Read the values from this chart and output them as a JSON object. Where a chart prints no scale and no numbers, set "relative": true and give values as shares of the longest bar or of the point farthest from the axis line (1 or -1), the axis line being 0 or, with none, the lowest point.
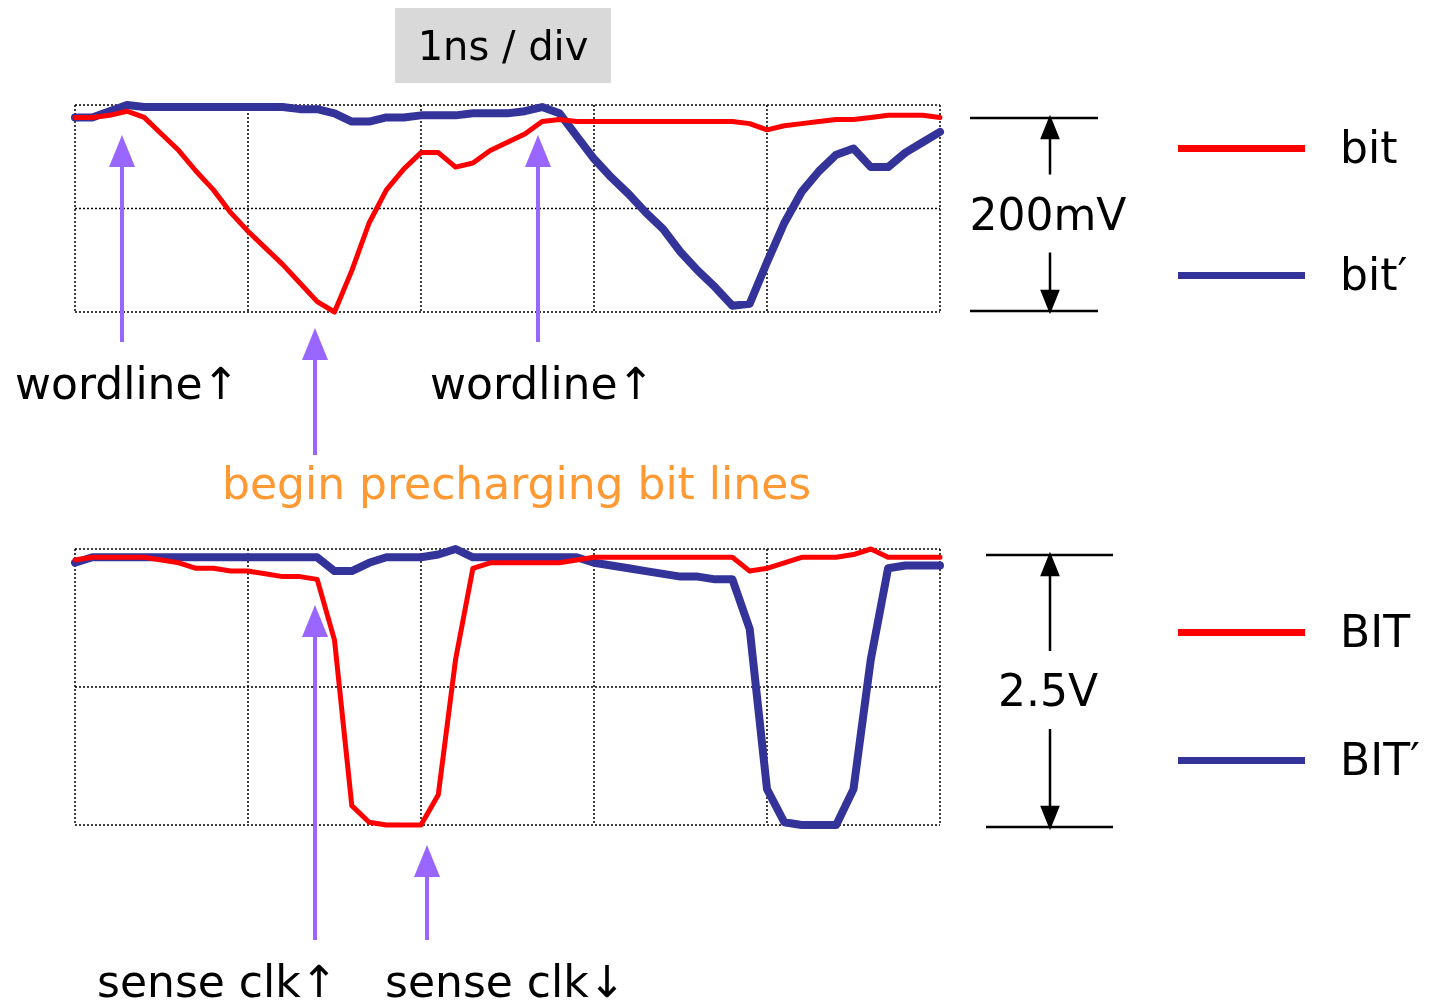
{
  "chart_data": [
    {
      "type": "line",
      "title": "1ns / div",
      "relative": true,
      "grid": true,
      "legend": "right",
      "marker": "none",
      "annotations": [
        "200mV",
        "wordline↑",
        "wordline↑",
        "begin precharging bit lines"
      ],
      "categories": [
        null,
        null,
        null,
        null,
        null,
        null,
        null,
        null,
        null,
        null,
        null,
        null,
        null,
        null,
        null,
        null,
        null,
        null,
        null,
        null,
        null,
        null,
        null,
        null,
        null,
        null,
        null,
        null,
        null,
        null,
        null,
        null,
        null,
        null,
        null,
        null,
        null,
        null,
        null,
        null,
        null,
        null,
        null,
        null,
        null,
        null,
        null,
        null,
        null,
        null,
        null
      ],
      "series": [
        {
          "name": "bit",
          "color": "#ff0000",
          "values": [
            0.94,
            0.94,
            0.95,
            0.97,
            0.94,
            0.86,
            0.78,
            0.68,
            0.59,
            0.48,
            0.39,
            0.31,
            0.23,
            0.14,
            0.05,
            0.0,
            0.2,
            0.43,
            0.59,
            0.69,
            0.77,
            0.77,
            0.7,
            0.72,
            0.78,
            0.82,
            0.86,
            0.92,
            0.93,
            0.92,
            0.92,
            0.92,
            0.92,
            0.92,
            0.92,
            0.92,
            0.92,
            0.92,
            0.92,
            0.91,
            0.88,
            0.9,
            0.91,
            0.92,
            0.93,
            0.93,
            0.94,
            0.95,
            0.95,
            0.95,
            0.94
          ]
        },
        {
          "name": "bit′",
          "color": "#333399",
          "values": [
            0.94,
            0.94,
            0.97,
            1.0,
            0.99,
            0.99,
            0.99,
            0.99,
            0.99,
            0.99,
            0.99,
            0.99,
            0.99,
            0.98,
            0.98,
            0.96,
            0.92,
            0.92,
            0.94,
            0.94,
            0.95,
            0.95,
            0.95,
            0.96,
            0.96,
            0.96,
            0.97,
            0.99,
            0.96,
            0.85,
            0.74,
            0.65,
            0.57,
            0.48,
            0.4,
            0.29,
            0.2,
            0.12,
            0.03,
            0.04,
            0.24,
            0.43,
            0.58,
            0.68,
            0.76,
            0.79,
            0.7,
            0.7,
            0.77,
            0.82,
            0.87
          ]
        }
      ]
    },
    {
      "type": "line",
      "relative": true,
      "grid": true,
      "legend": "right",
      "marker": "none",
      "annotations": [
        "2.5V",
        "sense clk↑",
        "sense clk↓"
      ],
      "categories": [
        null,
        null,
        null,
        null,
        null,
        null,
        null,
        null,
        null,
        null,
        null,
        null,
        null,
        null,
        null,
        null,
        null,
        null,
        null,
        null,
        null,
        null,
        null,
        null,
        null,
        null,
        null,
        null,
        null,
        null,
        null,
        null,
        null,
        null,
        null,
        null,
        null,
        null,
        null,
        null,
        null,
        null,
        null,
        null,
        null,
        null,
        null,
        null,
        null,
        null,
        null
      ],
      "series": [
        {
          "name": "BIT",
          "color": "#ff0000",
          "values": [
            0.96,
            0.97,
            0.97,
            0.97,
            0.97,
            0.96,
            0.95,
            0.93,
            0.93,
            0.92,
            0.92,
            0.91,
            0.9,
            0.9,
            0.89,
            0.67,
            0.07,
            0.01,
            0.0,
            0.0,
            0.0,
            0.11,
            0.6,
            0.93,
            0.95,
            0.95,
            0.95,
            0.95,
            0.95,
            0.96,
            0.97,
            0.97,
            0.97,
            0.97,
            0.97,
            0.97,
            0.97,
            0.97,
            0.97,
            0.92,
            0.93,
            0.95,
            0.97,
            0.97,
            0.97,
            0.98,
            1.0,
            0.97,
            0.97,
            0.97,
            0.97
          ]
        },
        {
          "name": "BIT′",
          "color": "#333399",
          "values": [
            0.95,
            0.97,
            0.97,
            0.97,
            0.97,
            0.97,
            0.97,
            0.97,
            0.97,
            0.97,
            0.97,
            0.97,
            0.97,
            0.97,
            0.97,
            0.92,
            0.92,
            0.95,
            0.97,
            0.97,
            0.97,
            0.98,
            1.0,
            0.97,
            0.97,
            0.97,
            0.97,
            0.97,
            0.97,
            0.97,
            0.95,
            0.94,
            0.93,
            0.92,
            0.91,
            0.9,
            0.9,
            0.89,
            0.89,
            0.71,
            0.13,
            0.01,
            0.0,
            0.0,
            0.0,
            0.13,
            0.6,
            0.93,
            0.94,
            0.94,
            0.94
          ]
        }
      ]
    }
  ]
}
